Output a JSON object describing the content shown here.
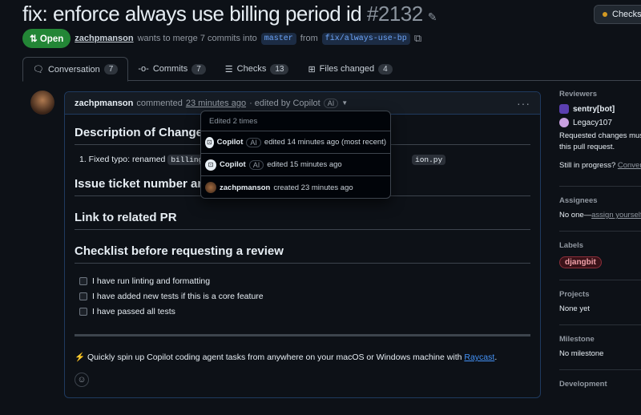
{
  "pr": {
    "title": "fix: enforce always use billing period id",
    "number": "#2132",
    "status": "Open",
    "author": "zachpmanson",
    "merge_text": "wants to merge 7 commits into",
    "base_branch": "master",
    "from": "from",
    "head_branch": "fix/always-use-bp",
    "checks_button": "Checks"
  },
  "tabs": [
    {
      "label": "Conversation",
      "count": "7"
    },
    {
      "label": "Commits",
      "count": "7"
    },
    {
      "label": "Checks",
      "count": "13"
    },
    {
      "label": "Files changed",
      "count": "4"
    }
  ],
  "comment": {
    "author": "zachpmanson",
    "action": "commented",
    "time": "23 minutes ago",
    "edited": "· edited by Copilot",
    "ai": "AI",
    "h_description": "Description of Changes",
    "list_prefix": "1. Fixed typo: renamed",
    "code1": "billing",
    "code2": "ion.py",
    "h_issue": "Issue ticket number and link",
    "h_link": "Link to related PR",
    "h_checklist": "Checklist before requesting a review",
    "checklist": [
      "I have run linting and formatting",
      "I have added new tests if this is a core feature",
      "I have passed all tests"
    ],
    "raycast_prefix": "⚡ Quickly spin up Copilot coding agent tasks from anywhere on your macOS or Windows machine with",
    "raycast_link": "Raycast",
    "raycast_suffix": "."
  },
  "edit_history": {
    "header": "Edited 2 times",
    "items": [
      {
        "user": "Copilot",
        "ai": "AI",
        "text": "edited 14 minutes ago (most recent)"
      },
      {
        "user": "Copilot",
        "ai": "AI",
        "text": "edited 15 minutes ago"
      },
      {
        "user": "zachpmanson",
        "text": "created 23 minutes ago"
      }
    ]
  },
  "sidebar": {
    "reviewers_h": "Reviewers",
    "reviewers": [
      "sentry[bot]",
      "Legacy107"
    ],
    "requested": "Requested changes must be addressed to merge this pull request.",
    "requested_l1": "Requested changes mus",
    "requested_l2": "this pull request.",
    "in_progress": "Still in progress?",
    "convert": "Convert to draft",
    "assignees_h": "Assignees",
    "assignees_none": "No one—",
    "assign_yourself": "assign yourself",
    "labels_h": "Labels",
    "label": "djangbit",
    "projects_h": "Projects",
    "projects": "None yet",
    "milestone_h": "Milestone",
    "milestone": "No milestone",
    "development_h": "Development"
  },
  "colors": {
    "background": "#0d1117",
    "open": "#238636",
    "label_border": "#8b2e3a",
    "link": "#4493f8"
  }
}
